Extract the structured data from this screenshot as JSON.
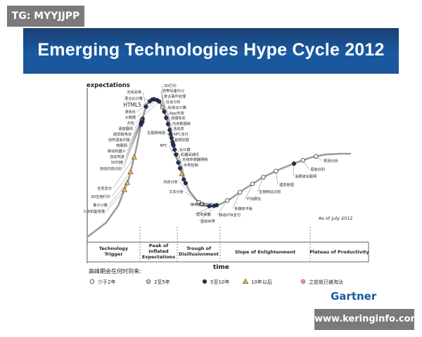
{
  "watermark_tl": "TG: MYYJJPP",
  "watermark_br": "www.keringinfo.com",
  "banner_title": "Emerging Technologies Hype Cycle 2012",
  "brand": "Gartner",
  "colors": {
    "banner": "#1a5aa0",
    "curve": "#9a9a9a",
    "dot_dark": "#1f2f5e",
    "triangle": "#e9b84b"
  },
  "chart_data": {
    "type": "line",
    "title": "Emerging Technologies Hype Cycle 2012",
    "ylabel": "expectations",
    "xlabel": "time",
    "note": "As of July 2012",
    "legend_title": "高峰期会在何时到来:",
    "legend": [
      {
        "symbol": "circle-open",
        "label": "少于2年"
      },
      {
        "symbol": "circle-light",
        "label": "2至5年"
      },
      {
        "symbol": "circle-dark",
        "label": "5至10年"
      },
      {
        "symbol": "triangle",
        "label": "10年以后"
      },
      {
        "symbol": "cross",
        "label": "之前就已被淘汰"
      }
    ],
    "phases": [
      "Technology Trigger",
      "Peak of Inflated Expectations",
      "Trough of Disillusionment",
      "Slope of Enlightenment",
      "Plateau of Productivity"
    ],
    "technologies": [
      {
        "name": "无线充电",
        "phase": 1,
        "pos": 0.1,
        "eta": "circle-dark"
      },
      {
        "name": "混合云计算",
        "phase": 1,
        "pos": 0.22,
        "eta": "circle-dark"
      },
      {
        "name": "HTML5",
        "phase": 1,
        "pos": 0.3,
        "eta": "circle-dark"
      },
      {
        "name": "游戏化",
        "phase": 1,
        "pos": 0.36,
        "eta": "circle-dark"
      },
      {
        "name": "大数据",
        "phase": 1,
        "pos": 0.45,
        "eta": "circle-dark"
      },
      {
        "name": "众包",
        "phase": 1,
        "pos": 0.52,
        "eta": "circle-dark"
      },
      {
        "name": "语音翻译",
        "phase": 0,
        "pos": 0.95,
        "eta": "circle-dark"
      },
      {
        "name": "硅阳极电池",
        "phase": 0,
        "pos": 0.9,
        "eta": "circle-dark"
      },
      {
        "name": "自然语言问答",
        "phase": 0,
        "pos": 0.85,
        "eta": "triangle"
      },
      {
        "name": "物联网",
        "phase": 0,
        "pos": 0.8,
        "eta": "circle-dark"
      },
      {
        "name": "移动机器人",
        "phase": 0,
        "pos": 0.75,
        "eta": "triangle"
      },
      {
        "name": "自动驾驶",
        "phase": 0,
        "pos": 0.7,
        "eta": "circle-dark"
      },
      {
        "name": "3D扫描",
        "phase": 0,
        "pos": 0.65,
        "eta": "circle-dark"
      },
      {
        "name": "自动内容识别",
        "phase": 0,
        "pos": 0.58,
        "eta": "circle-dark"
      },
      {
        "name": "全息显示",
        "phase": 0,
        "pos": 0.36,
        "eta": "triangle"
      },
      {
        "name": "3D生物打印",
        "phase": 0,
        "pos": 0.28,
        "eta": "triangle"
      },
      {
        "name": "量子计算",
        "phase": 0,
        "pos": 0.21,
        "eta": "triangle"
      },
      {
        "name": "人体机能增强",
        "phase": 0,
        "pos": 0.15,
        "eta": "triangle"
      },
      {
        "name": "3D打印",
        "phase": 1,
        "pos": 0.62,
        "eta": "circle-light"
      },
      {
        "name": "自带设备办公",
        "phase": 1,
        "pos": 0.68,
        "eta": "circle-dark"
      },
      {
        "name": "复合事件处理",
        "phase": 1,
        "pos": 0.74,
        "eta": "circle-dark"
      },
      {
        "name": "社会分析",
        "phase": 1,
        "pos": 0.8,
        "eta": "circle-dark"
      },
      {
        "name": "私有云计算",
        "phase": 1,
        "pos": 0.85,
        "eta": "circle-dark"
      },
      {
        "name": "App市场",
        "phase": 1,
        "pos": 0.88,
        "eta": "circle-dark"
      },
      {
        "name": "增强现实",
        "phase": 1,
        "pos": 0.91,
        "eta": "circle-dark"
      },
      {
        "name": "内存数据库",
        "phase": 1,
        "pos": 0.94,
        "eta": "circle-dark"
      },
      {
        "name": "活动流",
        "phase": 1,
        "pos": 0.96,
        "eta": "circle-dark"
      },
      {
        "name": "NFC支付",
        "phase": 2,
        "pos": 0.02,
        "eta": "circle-dark"
      },
      {
        "name": "音频挖掘",
        "phase": 2,
        "pos": 0.05,
        "eta": "circle-dark"
      },
      {
        "name": "互联网电视",
        "phase": 1,
        "pos": 0.97,
        "eta": "circle-dark"
      },
      {
        "name": "NFC",
        "phase": 2,
        "pos": 0.1,
        "eta": "circle-dark"
      },
      {
        "name": "云计算",
        "phase": 2,
        "pos": 0.14,
        "eta": "circle-dark"
      },
      {
        "name": "机器间通讯",
        "phase": 2,
        "pos": 0.18,
        "eta": "triangle"
      },
      {
        "name": "无线传感器网络",
        "phase": 2,
        "pos": 0.22,
        "eta": "circle-dark"
      },
      {
        "name": "手势控制",
        "phase": 2,
        "pos": 0.26,
        "eta": "circle-dark"
      },
      {
        "name": "内存分析",
        "phase": 2,
        "pos": 0.55,
        "eta": "circle-open"
      },
      {
        "name": "文本分析",
        "phase": 2,
        "pos": 0.62,
        "eta": "circle-open"
      },
      {
        "name": "家用健康监控",
        "phase": 2,
        "pos": 0.78,
        "eta": "circle-dark"
      },
      {
        "name": "虚拟桌面",
        "phase": 2,
        "pos": 0.88,
        "eta": "circle-dark"
      },
      {
        "name": "虚拟世界",
        "phase": 2,
        "pos": 0.94,
        "eta": "circle-dark"
      },
      {
        "name": "移动OTA支付",
        "phase": 3,
        "pos": 0.08,
        "eta": "circle-open"
      },
      {
        "name": "多媒体平板",
        "phase": 3,
        "pos": 0.22,
        "eta": "circle-open"
      },
      {
        "name": "IT消费化",
        "phase": 3,
        "pos": 0.36,
        "eta": "circle-open"
      },
      {
        "name": "生物特征识别",
        "phase": 3,
        "pos": 0.48,
        "eta": "circle-open"
      },
      {
        "name": "理念管理",
        "phase": 3,
        "pos": 0.62,
        "eta": "circle-open"
      },
      {
        "name": "消费级车联网",
        "phase": 3,
        "pos": 0.82,
        "eta": "circle-dark"
      },
      {
        "name": "语音识别",
        "phase": 3,
        "pos": 0.92,
        "eta": "circle-open"
      },
      {
        "name": "预测分析",
        "phase": 4,
        "pos": 0.1,
        "eta": "circle-open"
      }
    ]
  }
}
